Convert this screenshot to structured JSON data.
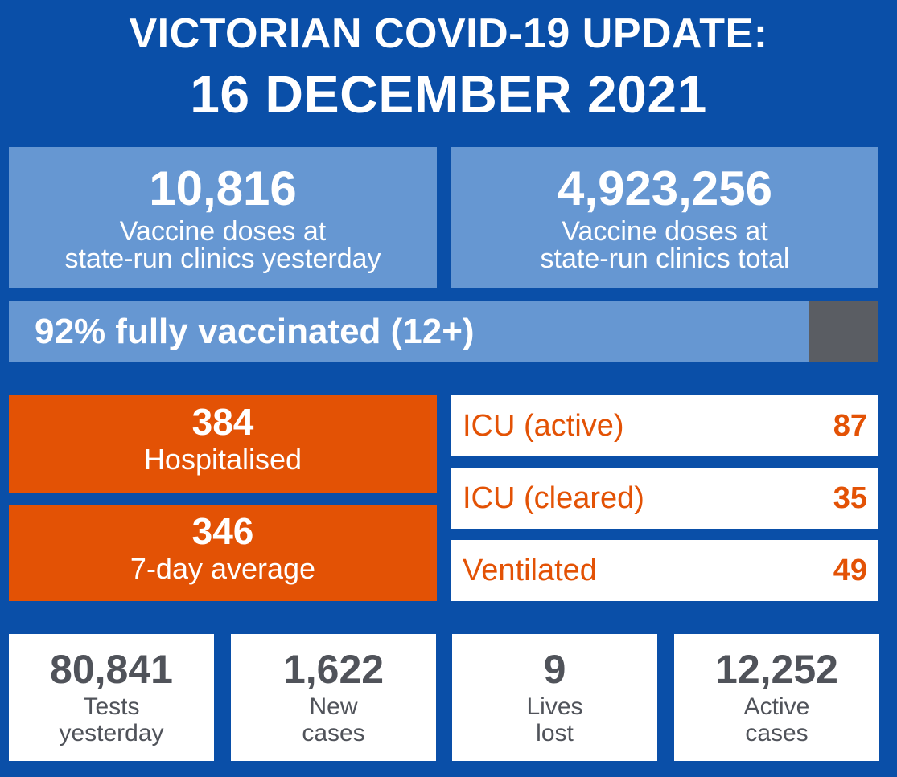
{
  "header": {
    "title_line1": "VICTORIAN COVID-19 UPDATE:",
    "title_line2": "16 DECEMBER 2021"
  },
  "vaccines": {
    "yesterday": {
      "value": "10,816",
      "label_line1": "Vaccine doses at",
      "label_line2": "state-run clinics yesterday"
    },
    "total": {
      "value": "4,923,256",
      "label_line1": "Vaccine doses at",
      "label_line2": "state-run clinics total"
    }
  },
  "fully_vaccinated": {
    "label": "92% fully vaccinated (12+)",
    "fraction": 0.92
  },
  "hospital": {
    "hospitalised": {
      "value": "384",
      "label": "Hospitalised"
    },
    "average": {
      "value": "346",
      "label": "7-day average"
    }
  },
  "icu": [
    {
      "label": "ICU (active)",
      "value": "87"
    },
    {
      "label": "ICU (cleared)",
      "value": "35"
    },
    {
      "label": "Ventilated",
      "value": "49"
    }
  ],
  "stats": [
    {
      "value": "80,841",
      "label_line1": "Tests",
      "label_line2": "yesterday"
    },
    {
      "value": "1,622",
      "label_line1": "New",
      "label_line2": "cases"
    },
    {
      "value": "9",
      "label_line1": "Lives",
      "label_line2": "lost"
    },
    {
      "value": "12,252",
      "label_line1": "Active",
      "label_line2": "cases"
    }
  ],
  "colors": {
    "background": "#0a4fa8",
    "vaccine_panel": "#6697d2",
    "bar_remainder": "#5a5d63",
    "hospital_orange": "#e35205",
    "stat_text": "#50535a"
  }
}
